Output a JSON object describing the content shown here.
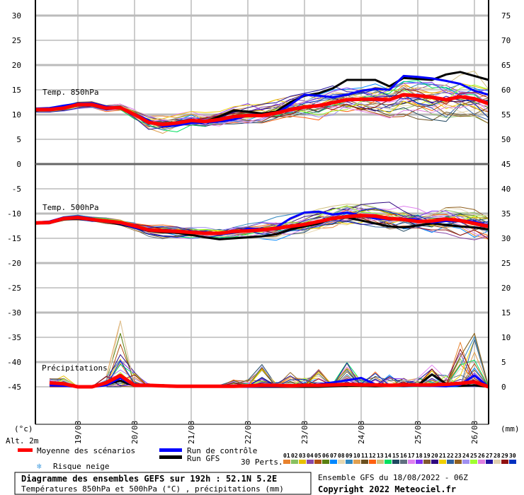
{
  "chart_data": {
    "type": "line",
    "title": "Diagramme des ensembles GEFS sur 192h : 52.1N 5.2E",
    "subtitle": "Températures 850hPa et 500hPa (°C) , précipitations (mm)",
    "run_info": "Ensemble GFS du 18/08/2022 - 06Z",
    "copyright": "Copyright 2022 Meteociel.fr",
    "left_unit": "(°c)",
    "right_unit": "(mm)",
    "altitude_label": "Alt. 2m",
    "left_ticks": [
      30,
      25,
      20,
      15,
      10,
      5,
      0,
      -5,
      -10,
      -15,
      -20,
      -25,
      -30,
      -35,
      -40,
      -45
    ],
    "right_ticks_temp": [
      75,
      70,
      65,
      60,
      55,
      50,
      45
    ],
    "right_ticks_precip": [
      40,
      35,
      30,
      25,
      20,
      15,
      10,
      5,
      0
    ],
    "x_dates": [
      "19/08",
      "20/08",
      "21/08",
      "22/08",
      "23/08",
      "24/08",
      "25/08",
      "26/08"
    ],
    "time_step_hours": 6,
    "panel_labels": {
      "t850": "Temp. 850hPa",
      "t500": "Temp. 500hPa",
      "precip": "Précipitations"
    },
    "legend": {
      "mean": "Moyenne des scénarios",
      "control": "Run de contrôle",
      "gfs": "Run GFS",
      "snow": "Risque neige",
      "perts": "30 Perts."
    },
    "colors": {
      "mean": "#ff0000",
      "control": "#0000ff",
      "gfs": "#000000"
    },
    "pert_ids": [
      "01",
      "02",
      "03",
      "04",
      "05",
      "06",
      "07",
      "08",
      "09",
      "10",
      "11",
      "12",
      "13",
      "14",
      "15",
      "16",
      "17",
      "18",
      "19",
      "20",
      "21",
      "22",
      "23",
      "24",
      "25",
      "26",
      "27",
      "28",
      "29",
      "30"
    ],
    "pert_colors": [
      "#e8822e",
      "#88c060",
      "#e8c000",
      "#8848a8",
      "#b05010",
      "#5a8010",
      "#0088ff",
      "#e8d8b0",
      "#3088c0",
      "#e0a050",
      "#6a5020",
      "#ff6010",
      "#d0c080",
      "#00e060",
      "#204860",
      "#607080",
      "#e080f0",
      "#8030f0",
      "#805830",
      "#300880",
      "#f0d000",
      "#3060a0",
      "#906020",
      "#a090f0",
      "#a0ff30",
      "#e080e0",
      "#2010a0",
      "#e0d0b0",
      "#901010",
      "#0030c0"
    ],
    "t850": {
      "mean": [
        11,
        11,
        11.3,
        12,
        12,
        11.3,
        11.4,
        10.0,
        8.4,
        8.0,
        8.3,
        8.8,
        8.6,
        9.0,
        9.6,
        9.8,
        9.8,
        10.3,
        11.0,
        11.5,
        11.8,
        12.4,
        13.0,
        13.1,
        13.1,
        13.0,
        14.0,
        13.8,
        13.5,
        13.0,
        13.6,
        13.2,
        12.2
      ],
      "control": [
        11.2,
        11.3,
        11.8,
        12.2,
        12.3,
        11.6,
        11.3,
        10.2,
        8.8,
        7.6,
        7.8,
        8.3,
        8.4,
        8.6,
        9.0,
        9.8,
        9.9,
        10.2,
        12.0,
        14.0,
        13.8,
        13.5,
        14.0,
        14.8,
        15.2,
        15.0,
        17.8,
        17.6,
        17.3,
        16.8,
        16.2,
        14.8,
        14.0
      ],
      "gfs": [
        10.8,
        11,
        11.5,
        12.2,
        12.2,
        11.2,
        11.3,
        10.2,
        8.6,
        7.8,
        8.0,
        8.5,
        8.6,
        9.6,
        10.8,
        10.6,
        10.2,
        10.6,
        12.5,
        13.8,
        14.3,
        15.3,
        17.0,
        17.0,
        17.0,
        15.7,
        17.4,
        17.2,
        17.0,
        18.1,
        18.6,
        17.8,
        17.0
      ],
      "spread": [
        0.8,
        0.8,
        0.9,
        1,
        1,
        1,
        1.1,
        1.5,
        2.2,
        2.6,
        2.6,
        2.4,
        2.4,
        2.5,
        2.6,
        2.8,
        3,
        3,
        3.2,
        3.4,
        3.6,
        3.8,
        4,
        4.2,
        4.4,
        4.6,
        5,
        5.2,
        5.4,
        5.6,
        5.8,
        6,
        6
      ]
    },
    "t500": {
      "mean": [
        -11.9,
        -11.8,
        -11.0,
        -10.8,
        -11.2,
        -11.5,
        -11.8,
        -12.5,
        -13.3,
        -13.5,
        -13.6,
        -13.8,
        -14.0,
        -14.0,
        -13.6,
        -13.5,
        -13.3,
        -13.0,
        -12.6,
        -12.2,
        -11.6,
        -11.0,
        -10.6,
        -10.4,
        -10.5,
        -11.0,
        -11.2,
        -11.6,
        -11.5,
        -11.1,
        -11.4,
        -12.0,
        -12.6
      ],
      "control": [
        -11.8,
        -11.6,
        -10.8,
        -10.6,
        -11.0,
        -11.6,
        -12.0,
        -12.8,
        -13.4,
        -13.6,
        -13.5,
        -13.6,
        -13.8,
        -14.2,
        -13.8,
        -13.0,
        -13.2,
        -12.8,
        -11.0,
        -9.8,
        -9.6,
        -10.2,
        -9.8,
        -10.4,
        -11.0,
        -11.2,
        -11.0,
        -11.2,
        -11.8,
        -11.5,
        -11.4,
        -11.6,
        -12.4
      ],
      "gfs": [
        -12.0,
        -11.9,
        -11.2,
        -11.0,
        -11.3,
        -11.6,
        -12.2,
        -12.8,
        -13.5,
        -13.8,
        -13.9,
        -14.3,
        -14.8,
        -15.2,
        -15.0,
        -14.8,
        -14.6,
        -14.2,
        -13.2,
        -12.6,
        -12.0,
        -11.0,
        -10.8,
        -11.4,
        -12.0,
        -12.6,
        -12.8,
        -12.4,
        -12.0,
        -12.3,
        -12.6,
        -12.8,
        -13.2
      ],
      "spread": [
        0.4,
        0.4,
        0.6,
        0.7,
        0.8,
        0.9,
        1,
        1.2,
        1.6,
        1.8,
        1.8,
        1.8,
        1.8,
        1.9,
        2,
        2.2,
        2.4,
        2.6,
        2.8,
        3,
        3.1,
        3.2,
        3.3,
        3.4,
        3.5,
        3.6,
        3.7,
        3.8,
        3.9,
        4,
        4.2,
        4.5,
        5
      ]
    },
    "precip": {
      "mean": [
        0.8,
        0.6,
        0,
        0,
        0.8,
        2.3,
        0.3,
        0.3,
        0.2,
        0.1,
        0.1,
        0.1,
        0.1,
        0.1,
        0.2,
        0.3,
        0.3,
        0.2,
        0.3,
        0.3,
        0.4,
        0.5,
        0.4,
        0.4,
        0.3,
        0.4,
        0.4,
        0.4,
        0.5,
        0.7,
        1.0,
        0
      ],
      "control": [
        0.3,
        0.2,
        0,
        0,
        0.3,
        1.8,
        0.2,
        0.2,
        0.1,
        0,
        0,
        0,
        0,
        0,
        0,
        0.1,
        0.1,
        0.1,
        0.2,
        0.5,
        0.9,
        1.3,
        1.8,
        0.5,
        0.3,
        0.3,
        0.2,
        0.2,
        0.1,
        0.4,
        2.3,
        0
      ],
      "gfs": [
        0.5,
        0.4,
        0,
        0,
        0.5,
        1.2,
        0.2,
        0.2,
        0.1,
        0,
        0,
        0,
        0,
        0,
        0,
        0,
        0,
        0,
        0,
        0,
        0.1,
        0.2,
        0.2,
        0.1,
        0.2,
        0.2,
        0.3,
        2.5,
        0.6,
        0.2,
        0.3,
        0
      ],
      "max": [
        1.8,
        2.2,
        0,
        0.2,
        2.3,
        13.3,
        3.0,
        0.6,
        0.5,
        0.2,
        0.2,
        0.2,
        0.3,
        1.5,
        1.5,
        4.5,
        1.2,
        3.2,
        1.8,
        3.6,
        0.8,
        4.9,
        1.5,
        3.3,
        2.5,
        1.8,
        2.0,
        4.8,
        2.5,
        9.0,
        10.8,
        0.2
      ]
    }
  }
}
